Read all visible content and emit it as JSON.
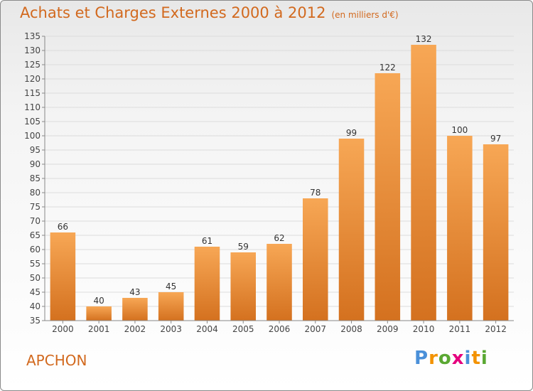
{
  "header": {
    "title": "Achats et Charges Externes 2000 à 2012",
    "unit": "(en milliers d'€)"
  },
  "footer": {
    "place": "APCHON",
    "logo": "Proxiti"
  },
  "colors": {
    "bar_top": "#f7a755",
    "bar_bottom": "#d4711f",
    "title": "#d2691e"
  },
  "chart_data": {
    "type": "bar",
    "categories": [
      "2000",
      "2001",
      "2002",
      "2003",
      "2004",
      "2005",
      "2006",
      "2007",
      "2008",
      "2009",
      "2010",
      "2011",
      "2012"
    ],
    "values": [
      66,
      40,
      43,
      45,
      61,
      59,
      62,
      78,
      99,
      122,
      132,
      100,
      97
    ],
    "ylim": [
      35,
      135
    ],
    "yticks": [
      35,
      40,
      45,
      50,
      55,
      60,
      65,
      70,
      75,
      80,
      85,
      90,
      95,
      100,
      105,
      110,
      115,
      120,
      125,
      130,
      135
    ],
    "grid": true
  }
}
